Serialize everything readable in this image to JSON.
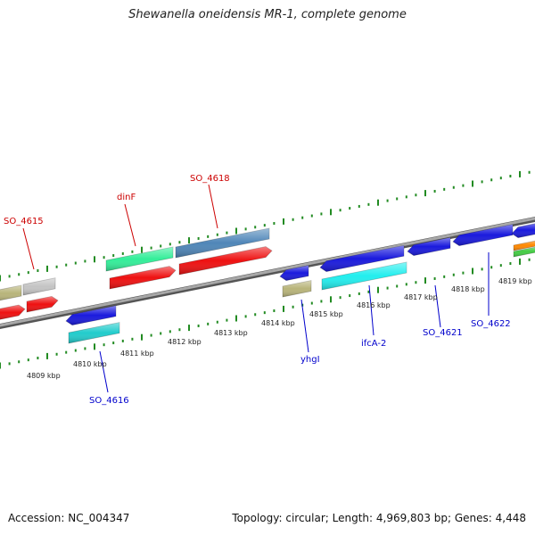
{
  "title": "Shewanella oneidensis MR-1, complete genome",
  "footer": {
    "accession": "Accession: NC_004347",
    "stats": "Topology: circular; Length: 4,969,803 bp; Genes: 4,448"
  },
  "colors": {
    "forward_label": "#cc0000",
    "reverse_label": "#0000cc",
    "tick": "#228b22",
    "backbone": "#8a8a8a"
  },
  "chart_data": {
    "type": "genome-map",
    "kbp_ticks": [
      "4809 kbp",
      "4810 kbp",
      "4811 kbp",
      "4812 kbp",
      "4813 kbp",
      "4814 kbp",
      "4815 kbp",
      "4816 kbp",
      "4817 kbp",
      "4818 kbp",
      "4819 kbp"
    ],
    "forward_gene_labels": [
      "SO_4615",
      "dinF",
      "SO_4618"
    ],
    "reverse_gene_labels": [
      "SO_4616",
      "yhgI",
      "ifcA-2",
      "SO_4621",
      "SO_4622"
    ]
  }
}
